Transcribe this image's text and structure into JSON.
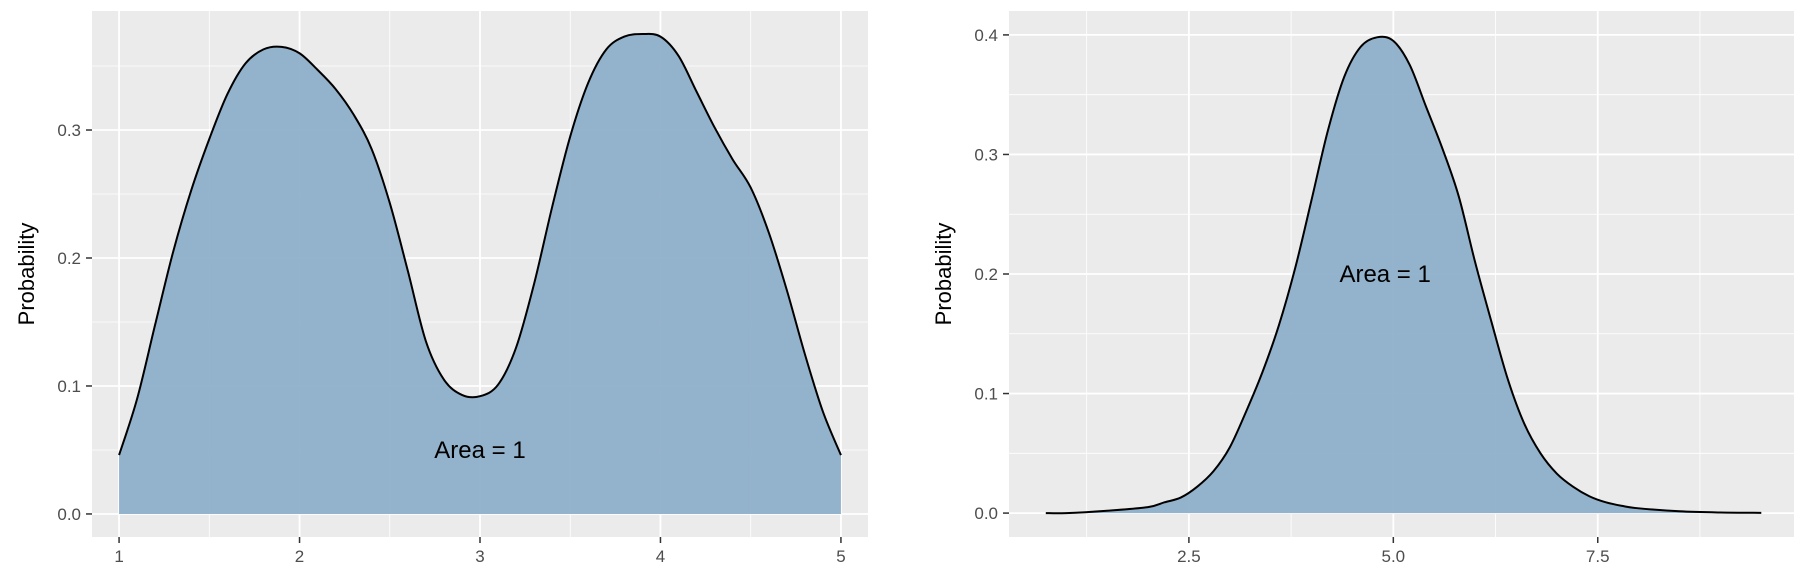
{
  "chart_data": [
    {
      "type": "area",
      "ylabel": "Probability",
      "xlim": [
        0.85,
        5.15
      ],
      "ylim": [
        -0.018,
        0.393
      ],
      "x_ticks": [
        1,
        2,
        3,
        4,
        5
      ],
      "x_tick_labels": [
        "1",
        "2",
        "3",
        "4",
        "5"
      ],
      "y_ticks": [
        0.0,
        0.1,
        0.2,
        0.3
      ],
      "y_tick_labels": [
        "0.0",
        "0.1",
        "0.2",
        "0.3"
      ],
      "grid": true,
      "fill_color": "#8eafc9",
      "line_color": "#000000",
      "annotation": {
        "text": "Area = 1",
        "x": 3.0,
        "y": 0.05
      },
      "x": [
        1.0,
        1.1,
        1.2,
        1.3,
        1.4,
        1.5,
        1.6,
        1.7,
        1.8,
        1.9,
        2.0,
        2.1,
        2.2,
        2.3,
        2.4,
        2.5,
        2.6,
        2.7,
        2.8,
        2.9,
        3.0,
        3.1,
        3.2,
        3.3,
        3.4,
        3.5,
        3.6,
        3.7,
        3.8,
        3.9,
        4.0,
        4.1,
        4.2,
        4.3,
        4.4,
        4.5,
        4.6,
        4.7,
        4.8,
        4.9,
        5.0
      ],
      "y": [
        0.046,
        0.09,
        0.148,
        0.205,
        0.253,
        0.293,
        0.328,
        0.352,
        0.363,
        0.365,
        0.36,
        0.347,
        0.332,
        0.312,
        0.285,
        0.243,
        0.19,
        0.135,
        0.105,
        0.093,
        0.092,
        0.101,
        0.13,
        0.18,
        0.24,
        0.295,
        0.337,
        0.363,
        0.373,
        0.375,
        0.373,
        0.358,
        0.33,
        0.302,
        0.277,
        0.255,
        0.22,
        0.175,
        0.125,
        0.08,
        0.046
      ]
    },
    {
      "type": "area",
      "ylabel": "Probability",
      "xlim": [
        0.3,
        9.9
      ],
      "ylim": [
        -0.02,
        0.42
      ],
      "x_ticks": [
        2.5,
        5.0,
        7.5
      ],
      "x_tick_labels": [
        "2.5",
        "5.0",
        "7.5"
      ],
      "y_ticks": [
        0.0,
        0.1,
        0.2,
        0.3,
        0.4
      ],
      "y_tick_labels": [
        "0.0",
        "0.1",
        "0.2",
        "0.3",
        "0.4"
      ],
      "grid": true,
      "fill_color": "#8eafc9",
      "line_color": "#000000",
      "annotation": {
        "text": "Area = 1",
        "x": 4.9,
        "y": 0.2
      },
      "x": [
        0.75,
        1.0,
        1.5,
        2.0,
        2.2,
        2.4,
        2.6,
        2.8,
        3.0,
        3.2,
        3.4,
        3.6,
        3.8,
        4.0,
        4.2,
        4.4,
        4.6,
        4.8,
        5.0,
        5.2,
        5.4,
        5.6,
        5.8,
        6.0,
        6.2,
        6.4,
        6.6,
        6.8,
        7.0,
        7.2,
        7.4,
        7.6,
        7.8,
        8.0,
        8.5,
        9.0,
        9.5
      ],
      "y": [
        0.0,
        0.0,
        0.002,
        0.005,
        0.009,
        0.013,
        0.022,
        0.035,
        0.055,
        0.085,
        0.118,
        0.157,
        0.205,
        0.262,
        0.32,
        0.365,
        0.39,
        0.398,
        0.395,
        0.375,
        0.34,
        0.305,
        0.265,
        0.21,
        0.16,
        0.112,
        0.075,
        0.05,
        0.033,
        0.022,
        0.014,
        0.009,
        0.006,
        0.004,
        0.0015,
        0.0005,
        0.0002
      ]
    }
  ]
}
